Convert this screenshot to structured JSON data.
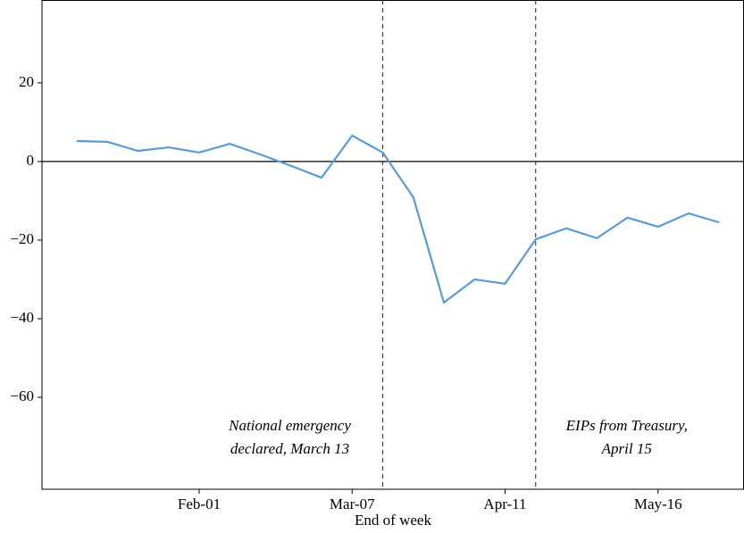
{
  "chart_data": {
    "type": "line",
    "x_label": "End of week",
    "x": [
      "Jan-04",
      "Jan-11",
      "Jan-18",
      "Jan-25",
      "Feb-01",
      "Feb-08",
      "Feb-15",
      "Feb-22",
      "Feb-29",
      "Mar-07",
      "Mar-14",
      "Mar-21",
      "Mar-28",
      "Apr-04",
      "Apr-11",
      "Apr-18",
      "Apr-25",
      "May-02",
      "May-09",
      "May-16",
      "May-23",
      "May-30"
    ],
    "series": [
      {
        "color": "#5b9bd5",
        "values": [
          5.2,
          5.0,
          2.7,
          3.6,
          2.3,
          4.5,
          1.8,
          -1.1,
          -4.1,
          6.6,
          2.3,
          -9.1,
          -35.9,
          -30.0,
          -31.1,
          -19.8,
          -17.0,
          -19.5,
          -14.3,
          -16.6,
          -13.2,
          -15.5
        ]
      }
    ],
    "ylim": [
      -83.4,
      41.1
    ],
    "yticks": [
      {
        "value": -60,
        "label": "−60"
      },
      {
        "value": -40,
        "label": "−40"
      },
      {
        "value": -20,
        "label": "−20"
      },
      0,
      20
    ],
    "xticks": [
      "Feb-01",
      "Mar-07",
      "Apr-11",
      "May-16"
    ],
    "hline": 0,
    "annotations": [
      {
        "x": "Mar-14",
        "side": "left",
        "lines": [
          "National emergency",
          "declared, March 13"
        ]
      },
      {
        "x": "Apr-18",
        "side": "right",
        "lines": [
          "EIPs from Treasury,",
          "April 15"
        ]
      }
    ]
  }
}
